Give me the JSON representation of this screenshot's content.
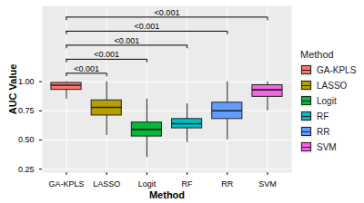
{
  "chart_data": {
    "type": "box",
    "x_label": "Method",
    "y_label": "AUC Value",
    "categories": [
      "GA-KPLS",
      "LASSO",
      "Logit",
      "RF",
      "RR",
      "SVM"
    ],
    "colors": [
      "#F8766D",
      "#B79F00",
      "#00BA38",
      "#00BFC4",
      "#619CFF",
      "#F564E3"
    ],
    "min": [
      0.85,
      0.54,
      0.35,
      0.48,
      0.5,
      0.75
    ],
    "q1": [
      0.93,
      0.71,
      0.53,
      0.6,
      0.68,
      0.87
    ],
    "median": [
      0.97,
      0.78,
      0.59,
      0.64,
      0.75,
      0.93
    ],
    "q3": [
      0.99,
      0.84,
      0.65,
      0.68,
      0.82,
      0.97
    ],
    "max": [
      1.0,
      1.0,
      0.85,
      0.81,
      1.0,
      1.0
    ],
    "ylim": [
      0.22,
      1.65
    ],
    "yticks": [
      0.25,
      {
        "value": 0.5,
        "label": "0.50"
      },
      {
        "value": 0.75,
        "label": "0.75"
      },
      {
        "value": 1,
        "label": "1.00"
      }
    ],
    "grid": true,
    "legend": "right",
    "legend_title": "Method",
    "comparisons": [
      {
        "group1": "GA-KPLS",
        "group2": "LASSO",
        "label": "<0.001"
      },
      {
        "group1": "GA-KPLS",
        "group2": "Logit",
        "label": "<0.001"
      },
      {
        "group1": "GA-KPLS",
        "group2": "RF",
        "label": "<0.001"
      },
      {
        "group1": "GA-KPLS",
        "group2": "RR",
        "label": "<0.001"
      },
      {
        "group1": "GA-KPLS",
        "group2": "SVM",
        "label": "<0.001"
      }
    ]
  }
}
